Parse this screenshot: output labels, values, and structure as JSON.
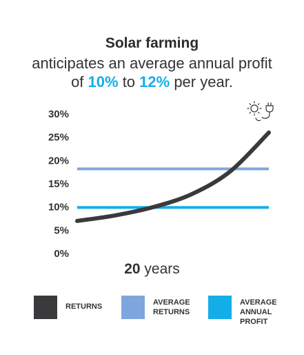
{
  "header": {
    "title": "Solar farming",
    "line1": "anticipates an average annual profit",
    "of_prefix": "of ",
    "low": "10%",
    "to_text": " to ",
    "high": "12%",
    "suffix": " per year."
  },
  "x_axis": {
    "value": "20",
    "unit": " years"
  },
  "legend": [
    {
      "label": "RETURNS",
      "color": "#3a3a3c"
    },
    {
      "label": "AVERAGE RETURNS",
      "color": "#7fa6dc"
    },
    {
      "label": "AVERAGE ANNUAL PROFIT",
      "color": "#13aee8"
    }
  ],
  "icons": [
    "sun-icon",
    "plug-icon"
  ],
  "chart_data": {
    "type": "line",
    "ylim": [
      0,
      30
    ],
    "yticks": [
      "0%",
      "5%",
      "10%",
      "15%",
      "20%",
      "25%",
      "30%"
    ],
    "xlim": [
      0,
      20
    ],
    "series": [
      {
        "name": "RETURNS",
        "color": "#3a3a3c",
        "x": [
          0,
          4,
          8,
          12,
          16,
          20
        ],
        "y": [
          7.0,
          8.2,
          10.0,
          12.8,
          17.7,
          26.0
        ]
      },
      {
        "name": "AVERAGE RETURNS",
        "color": "#7fa6dc",
        "x": [
          0,
          20
        ],
        "y": [
          18.2,
          18.2
        ]
      },
      {
        "name": "AVERAGE ANNUAL PROFIT",
        "color": "#13aee8",
        "x": [
          0,
          20
        ],
        "y": [
          9.9,
          9.9
        ]
      }
    ]
  }
}
